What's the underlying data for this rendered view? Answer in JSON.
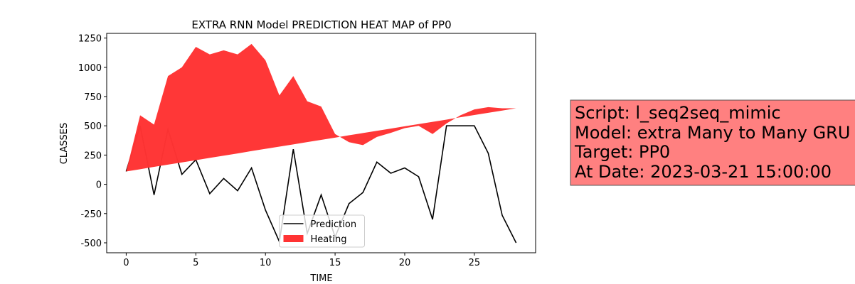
{
  "chart_data": {
    "type": "line",
    "title": "EXTRA RNN Model PREDICTION HEAT MAP of PP0",
    "x_label": "TIME",
    "y_label": "CLASSES",
    "x": [
      0,
      1,
      2,
      3,
      4,
      5,
      6,
      7,
      8,
      9,
      10,
      11,
      12,
      13,
      14,
      15,
      16,
      17,
      18,
      19,
      20,
      21,
      22,
      23,
      24,
      25,
      26,
      27,
      28
    ],
    "series": [
      {
        "name": "Prediction",
        "color": "#000000",
        "values": [
          110,
          500,
          -90,
          470,
          85,
          210,
          -80,
          50,
          -55,
          140,
          -220,
          -490,
          300,
          -420,
          -90,
          -450,
          -165,
          -70,
          190,
          95,
          140,
          65,
          -300,
          500,
          500,
          500,
          265,
          -265,
          -500
        ]
      },
      {
        "name": "Heating",
        "color": "#ff3333",
        "kind": "area",
        "values": [
          110,
          590,
          510,
          925,
          1000,
          1175,
          1110,
          1145,
          1110,
          1200,
          1060,
          760,
          925,
          710,
          665,
          430,
          360,
          335,
          405,
          440,
          480,
          500,
          430,
          520,
          590,
          640,
          660,
          650,
          650
        ],
        "lower": [
          110,
          129,
          149,
          168,
          187,
          206,
          226,
          245,
          264,
          284,
          303,
          322,
          341,
          361,
          380,
          399,
          419,
          438,
          457,
          476,
          496,
          515,
          534,
          553,
          573,
          592,
          611,
          630,
          650
        ]
      }
    ],
    "xlim": [
      -1.4,
      29.4
    ],
    "xticks": [
      0,
      5,
      10,
      15,
      20,
      25
    ],
    "ylim": [
      -585,
      1290
    ],
    "yticks": [
      -500,
      -250,
      0,
      250,
      500,
      750,
      1000,
      1250
    ],
    "legend": "lower center",
    "annotation": [
      "Script: l_seq2seq_mimic",
      "Model: extra Many to Many GRU",
      "Target: PP0",
      "At Date: 2023-03-21 15:00:00"
    ]
  }
}
